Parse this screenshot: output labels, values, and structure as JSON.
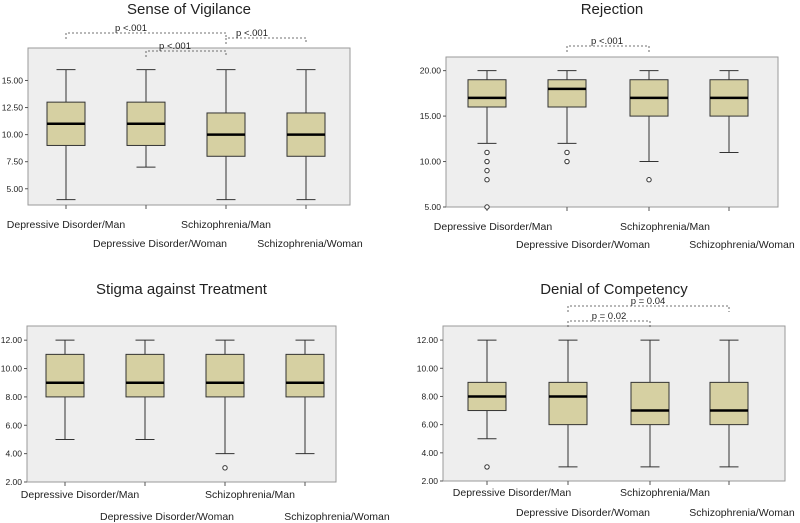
{
  "chart_data": [
    {
      "type": "box",
      "title": "Sense of Vigilance",
      "ylim": [
        3.5,
        18.0
      ],
      "yticks": [
        5,
        7.5,
        10,
        12.5,
        15
      ],
      "tick_labels": [
        "5.00",
        "7.50",
        "10.00",
        "12.50",
        "15.00"
      ],
      "categories": [
        "Depressive Disorder/Man",
        "Depressive Disorder/Woman",
        "Schizophrenia/Man",
        "Schizophrenia/Woman"
      ],
      "boxes": [
        {
          "min": 4,
          "q1": 9,
          "median": 11,
          "q3": 13,
          "max": 16,
          "outliers": []
        },
        {
          "min": 7,
          "q1": 9,
          "median": 11,
          "q3": 13,
          "max": 16,
          "outliers": []
        },
        {
          "min": 4,
          "q1": 8,
          "median": 10,
          "q3": 12,
          "max": 16,
          "outliers": []
        },
        {
          "min": 4,
          "q1": 8,
          "median": 10,
          "q3": 12,
          "max": 16,
          "outliers": []
        }
      ],
      "annotations": [
        {
          "from": 0,
          "to": 2,
          "label": "p <.001"
        },
        {
          "from": 2,
          "to": 3,
          "label": "p <.001"
        },
        {
          "from": 1,
          "to": 2,
          "label": "p <.001"
        }
      ]
    },
    {
      "type": "box",
      "title": "Rejection",
      "ylim": [
        5.0,
        21.5
      ],
      "yticks": [
        5,
        10,
        15,
        20
      ],
      "tick_labels": [
        "5.00",
        "10.00",
        "15.00",
        "20.00"
      ],
      "categories": [
        "Depressive Disorder/Man",
        "Depressive Disorder/Woman",
        "Schizophrenia/Man",
        "Schizophrenia/Woman"
      ],
      "boxes": [
        {
          "min": 12,
          "q1": 16,
          "median": 17,
          "q3": 19,
          "max": 20,
          "outliers": [
            11,
            10,
            9,
            8,
            5
          ]
        },
        {
          "min": 12,
          "q1": 16,
          "median": 18,
          "q3": 19,
          "max": 20,
          "outliers": [
            11,
            10
          ]
        },
        {
          "min": 10,
          "q1": 15,
          "median": 17,
          "q3": 19,
          "max": 20,
          "outliers": [
            8
          ]
        },
        {
          "min": 11,
          "q1": 15,
          "median": 17,
          "q3": 19,
          "max": 20,
          "outliers": []
        }
      ],
      "annotations": [
        {
          "from": 1,
          "to": 2,
          "label": "p <.001"
        }
      ]
    },
    {
      "type": "box",
      "title": "Stigma against Treatment",
      "ylim": [
        2.0,
        13.0
      ],
      "yticks": [
        2,
        4,
        6,
        8,
        10,
        12
      ],
      "tick_labels": [
        "2.00",
        "4.00",
        "6.00",
        "8.00",
        "10.00",
        "12.00"
      ],
      "categories": [
        "Depressive Disorder/Man",
        "Depressive Disorder/Woman",
        "Schizophrenia/Man",
        "Schizophrenia/Woman"
      ],
      "boxes": [
        {
          "min": 5,
          "q1": 8,
          "median": 9,
          "q3": 11,
          "max": 12,
          "outliers": []
        },
        {
          "min": 5,
          "q1": 8,
          "median": 9,
          "q3": 11,
          "max": 12,
          "outliers": []
        },
        {
          "min": 4,
          "q1": 8,
          "median": 9,
          "q3": 11,
          "max": 12,
          "outliers": [
            3
          ]
        },
        {
          "min": 4,
          "q1": 8,
          "median": 9,
          "q3": 11,
          "max": 12,
          "outliers": []
        }
      ],
      "annotations": []
    },
    {
      "type": "box",
      "title": "Denial of Competency",
      "ylim": [
        2.0,
        13.0
      ],
      "yticks": [
        2,
        4,
        6,
        8,
        10,
        12
      ],
      "tick_labels": [
        "2.00",
        "4.00",
        "6.00",
        "8.00",
        "10.00",
        "12.00"
      ],
      "categories": [
        "Depressive Disorder/Man",
        "Depressive Disorder/Woman",
        "Schizophrenia/Man",
        "Schizophrenia/Woman"
      ],
      "boxes": [
        {
          "min": 5,
          "q1": 7,
          "median": 8,
          "q3": 9,
          "max": 12,
          "outliers": [
            3
          ]
        },
        {
          "min": 3,
          "q1": 6,
          "median": 8,
          "q3": 9,
          "max": 12,
          "outliers": []
        },
        {
          "min": 3,
          "q1": 6,
          "median": 7,
          "q3": 9,
          "max": 12,
          "outliers": []
        },
        {
          "min": 3,
          "q1": 6,
          "median": 7,
          "q3": 9,
          "max": 12,
          "outliers": []
        }
      ],
      "annotations": [
        {
          "from": 1,
          "to": 2,
          "label": "p = 0.02"
        },
        {
          "from": 1,
          "to": 3,
          "label": "p = 0.04"
        }
      ]
    }
  ],
  "colors": {
    "box_fill": "#d6d0a2",
    "plot_bg": "#eeeeee",
    "frame": "#9a9a9a",
    "line": "#333333"
  }
}
